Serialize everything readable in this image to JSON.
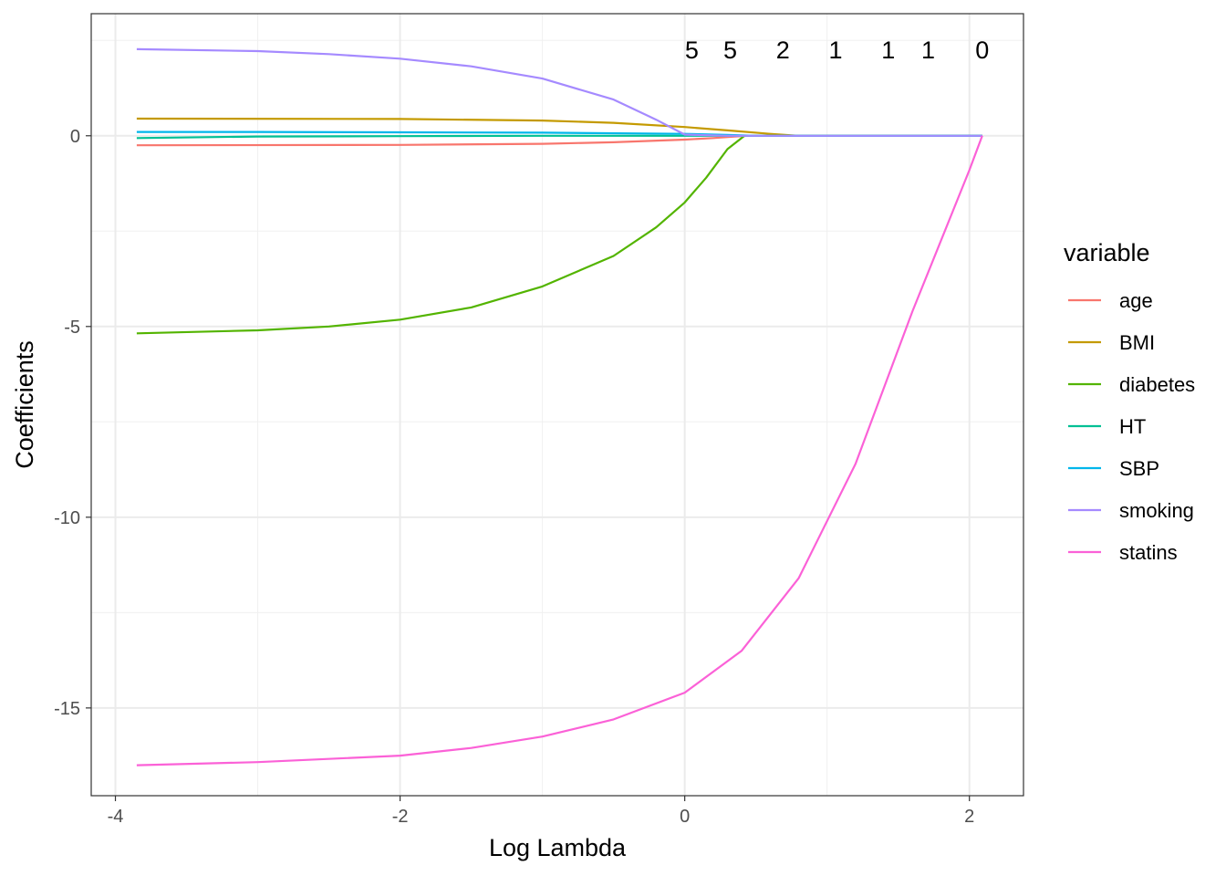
{
  "chart_data": {
    "type": "line",
    "title": "",
    "xlabel": "Log Lambda",
    "ylabel": "Coefficients",
    "xlim": [
      -4.17,
      2.38
    ],
    "ylim": [
      -17.3,
      3.2
    ],
    "x_ticks": [
      -4,
      -2,
      0,
      2
    ],
    "x_tick_labels": [
      "-4",
      "-2",
      "0",
      "2"
    ],
    "y_ticks": [
      0,
      -5,
      -10,
      -15
    ],
    "y_tick_labels": [
      "0",
      "-5",
      "-10",
      "-15"
    ],
    "grid": true,
    "legend": {
      "title": "variable",
      "position": "right"
    },
    "df_labels": [
      {
        "x": 0.05,
        "label": "5"
      },
      {
        "x": 0.32,
        "label": "5"
      },
      {
        "x": 0.69,
        "label": "2"
      },
      {
        "x": 1.06,
        "label": "1"
      },
      {
        "x": 1.43,
        "label": "1"
      },
      {
        "x": 1.71,
        "label": "1"
      },
      {
        "x": 2.09,
        "label": "0"
      }
    ],
    "series": [
      {
        "name": "age",
        "color": "#F8766D",
        "x": [
          -3.85,
          -2,
          -1,
          -0.5,
          0,
          0.2,
          0.35,
          0.45,
          1,
          2.09
        ],
        "y": [
          -0.25,
          -0.24,
          -0.21,
          -0.17,
          -0.1,
          -0.06,
          -0.02,
          0,
          0,
          0
        ]
      },
      {
        "name": "BMI",
        "color": "#C49A00",
        "x": [
          -3.85,
          -2,
          -1,
          -0.5,
          0,
          0.3,
          0.6,
          0.8,
          1,
          2.09
        ],
        "y": [
          0.45,
          0.44,
          0.4,
          0.34,
          0.23,
          0.14,
          0.05,
          0,
          0,
          0
        ]
      },
      {
        "name": "diabetes",
        "color": "#53B400",
        "x": [
          -3.85,
          -3,
          -2.5,
          -2,
          -1.5,
          -1,
          -0.5,
          -0.2,
          0,
          0.15,
          0.3,
          0.42,
          0.6,
          1,
          2.09
        ],
        "y": [
          -5.18,
          -5.1,
          -5.0,
          -4.82,
          -4.5,
          -3.95,
          -3.15,
          -2.4,
          -1.75,
          -1.1,
          -0.35,
          0,
          0,
          0,
          0
        ]
      },
      {
        "name": "HT",
        "color": "#00C094",
        "x": [
          -3.85,
          -3,
          -2,
          -1,
          0,
          0.3,
          0.5,
          1,
          2.09
        ],
        "y": [
          -0.06,
          -0.02,
          -0.01,
          0,
          0,
          0,
          0,
          0,
          0
        ]
      },
      {
        "name": "SBP",
        "color": "#00B6EB",
        "x": [
          -3.85,
          -3,
          -2,
          -1,
          0,
          0.3,
          0.5,
          1,
          2.09
        ],
        "y": [
          0.1,
          0.1,
          0.09,
          0.08,
          0.05,
          0.02,
          0,
          0,
          0
        ]
      },
      {
        "name": "smoking",
        "color": "#A58AFF",
        "x": [
          -3.85,
          -3,
          -2.5,
          -2,
          -1.5,
          -1,
          -0.5,
          -0.2,
          0,
          0.3,
          1,
          2.09
        ],
        "y": [
          2.27,
          2.22,
          2.14,
          2.02,
          1.82,
          1.5,
          0.95,
          0.42,
          0.03,
          0,
          0,
          0
        ]
      },
      {
        "name": "statins",
        "color": "#FB61D7",
        "x": [
          -3.85,
          -3,
          -2,
          -1.5,
          -1,
          -0.5,
          0,
          0.4,
          0.8,
          1.2,
          1.6,
          2.0,
          2.09
        ],
        "y": [
          -16.5,
          -16.42,
          -16.25,
          -16.05,
          -15.75,
          -15.3,
          -14.6,
          -13.5,
          -11.6,
          -8.6,
          -4.6,
          -0.9,
          0
        ]
      }
    ]
  }
}
